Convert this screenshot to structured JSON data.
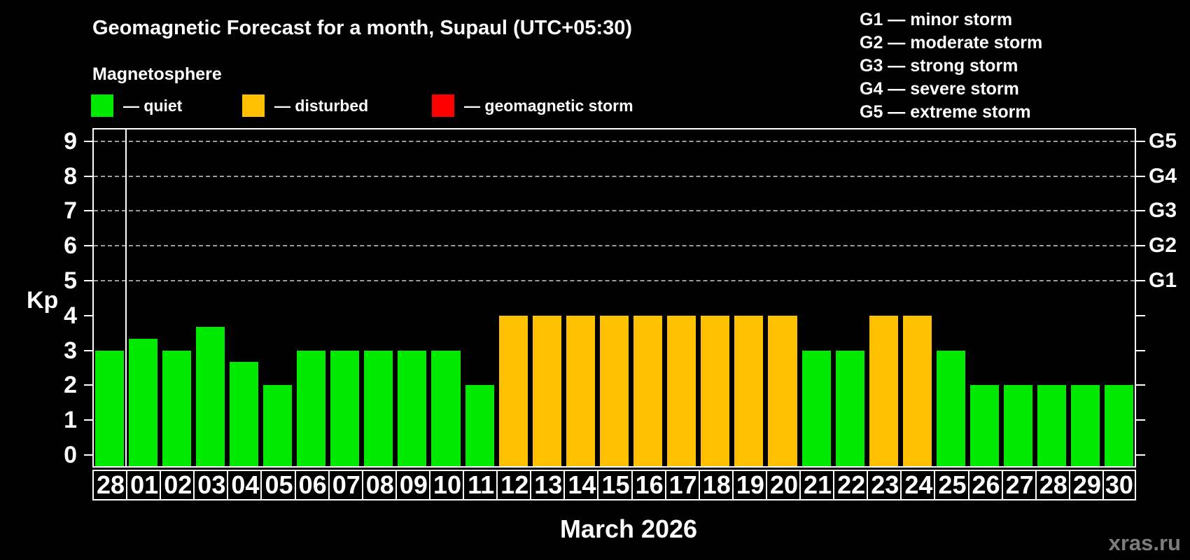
{
  "header": {
    "title": "Geomagnetic Forecast for a month, Supaul (UTC+05:30)",
    "subtitle": "Magnetosphere"
  },
  "colors": {
    "quiet": "#00ea00",
    "disturbed": "#ffc000",
    "storm": "#ff0000",
    "grid": "#9c9c9c",
    "axis": "#ffffff",
    "background": "#000000",
    "watermark_text": "#7d7d7d"
  },
  "legend": {
    "items": [
      {
        "key": "quiet",
        "label": "— quiet",
        "color": "#00ea00"
      },
      {
        "key": "disturbed",
        "label": "— disturbed",
        "color": "#ffc000"
      },
      {
        "key": "storm",
        "label": "— geomagnetic storm",
        "color": "#ff0000"
      }
    ]
  },
  "storm_scale_legend": {
    "items": [
      "G1 — minor storm",
      "G2 — moderate storm",
      "G3 — strong storm",
      "G4 — severe storm",
      "G5 — extreme storm"
    ]
  },
  "chart_data": {
    "type": "bar",
    "title": "Geomagnetic Forecast for a month, Supaul (UTC+05:30)",
    "xlabel": "March 2026",
    "ylabel": "Kp",
    "ylim": [
      0,
      9
    ],
    "y_ticks": [
      0,
      1,
      2,
      3,
      4,
      5,
      6,
      7,
      8,
      9
    ],
    "grid": "horizontal dashed lines at Kp 5..9 only",
    "legend_position": "top-left (state colors), top-right (G-scale)",
    "right_axis_labels": [
      {
        "label": "G1",
        "kp": 5
      },
      {
        "label": "G2",
        "kp": 6
      },
      {
        "label": "G3",
        "kp": 7
      },
      {
        "label": "G4",
        "kp": 8
      },
      {
        "label": "G5",
        "kp": 9
      }
    ],
    "prev_month_separator_after_index": 0,
    "categories": [
      "28",
      "01",
      "02",
      "03",
      "04",
      "05",
      "06",
      "07",
      "08",
      "09",
      "10",
      "11",
      "12",
      "13",
      "14",
      "15",
      "16",
      "17",
      "18",
      "19",
      "20",
      "21",
      "22",
      "23",
      "24",
      "25",
      "26",
      "27",
      "28",
      "29",
      "30"
    ],
    "series": [
      {
        "name": "Kp forecast",
        "values": [
          3,
          3.33,
          3,
          3.67,
          2.67,
          2,
          3,
          3,
          3,
          3,
          3,
          2,
          4,
          4,
          4,
          4,
          4,
          4,
          4,
          4,
          4,
          3,
          3,
          4,
          4,
          3,
          2,
          2,
          2,
          2,
          2
        ],
        "states": [
          "quiet",
          "quiet",
          "quiet",
          "quiet",
          "quiet",
          "quiet",
          "quiet",
          "quiet",
          "quiet",
          "quiet",
          "quiet",
          "quiet",
          "disturbed",
          "disturbed",
          "disturbed",
          "disturbed",
          "disturbed",
          "disturbed",
          "disturbed",
          "disturbed",
          "disturbed",
          "quiet",
          "quiet",
          "disturbed",
          "disturbed",
          "quiet",
          "quiet",
          "quiet",
          "quiet",
          "quiet",
          "quiet"
        ]
      }
    ]
  },
  "footer": {
    "xaxis_title": "March 2026",
    "watermark": "xras.ru"
  }
}
